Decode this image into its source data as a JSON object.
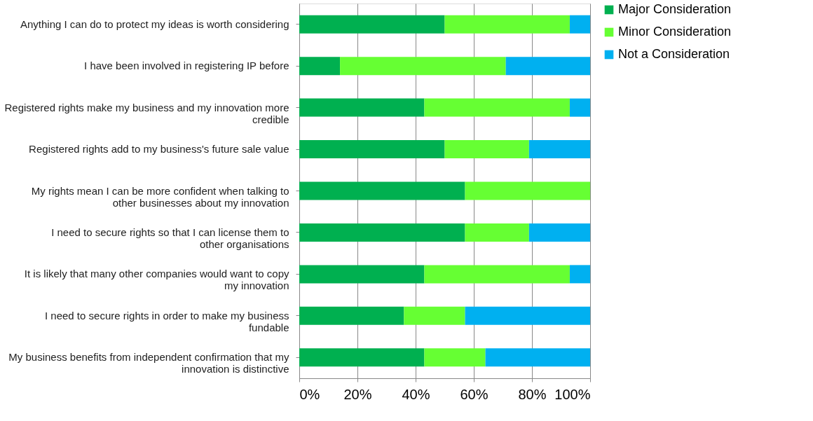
{
  "chart_data": {
    "type": "bar",
    "orientation": "horizontal",
    "stacked": true,
    "categories": [
      "Anything I can do to protect my ideas is worth considering",
      "I have been involved in registering IP before",
      "Registered rights make my business and my innovation more credible",
      "Registered rights add to my business's future sale value",
      "My rights mean I can be more confident when talking to other businesses about my innovation",
      "I need to secure rights so that I can license them to other organisations",
      "It is likely that many other companies would want to copy my innovation",
      "I need to secure rights in order to make my business fundable",
      "My business benefits from independent confirmation that my innovation is distinctive"
    ],
    "series": [
      {
        "name": "Major Consideration",
        "color": "#00b050",
        "values": [
          50,
          14,
          43,
          50,
          57,
          57,
          43,
          36,
          43
        ]
      },
      {
        "name": "Minor Consideration",
        "color": "#66ff33",
        "values": [
          43,
          57,
          50,
          29,
          43,
          22,
          50,
          21,
          21
        ]
      },
      {
        "name": "Not a Consideration",
        "color": "#00b0f0",
        "values": [
          7,
          29,
          7,
          21,
          0,
          21,
          7,
          43,
          36
        ]
      }
    ],
    "xlim": [
      0,
      100
    ],
    "xticks": [
      {
        "value": 0,
        "label": "0%"
      },
      {
        "value": 20,
        "label": "20%"
      },
      {
        "value": 40,
        "label": "40%"
      },
      {
        "value": 60,
        "label": "60%"
      },
      {
        "value": 80,
        "label": "80%"
      },
      {
        "value": 100,
        "label": "100%"
      }
    ],
    "grid": "x",
    "legend": "right"
  }
}
